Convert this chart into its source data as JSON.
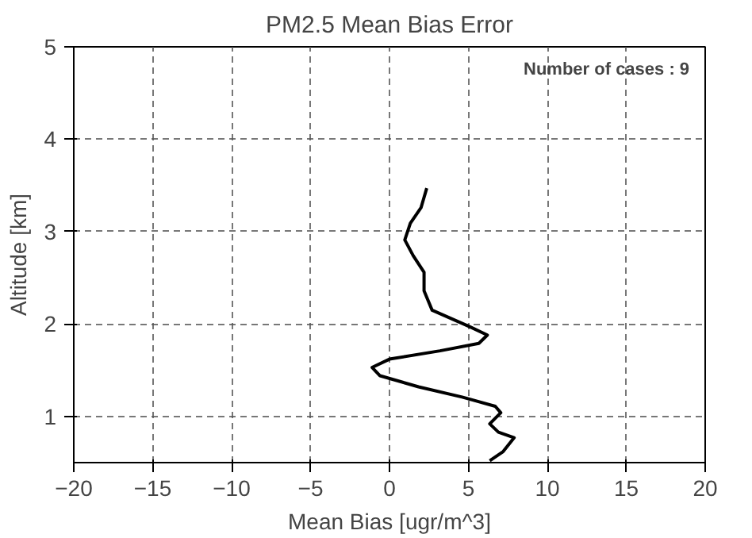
{
  "chart_data": {
    "type": "line",
    "title": "PM2.5 Mean Bias Error",
    "xlabel": "Mean Bias [ugr/m^3]",
    "ylabel": "Altitude [km]",
    "annotations": [
      "Number of cases : 9"
    ],
    "series": [
      {
        "color": "#000000",
        "x": [
          2.36,
          2.0,
          1.32,
          0.97,
          1.5,
          2.19,
          2.19,
          2.7,
          3.9,
          5.1,
          6.2,
          5.66,
          3.2,
          0,
          -1.1,
          -0.6,
          1.84,
          4.6,
          6.7,
          7.05,
          6.35,
          6.9,
          7.9,
          7.2,
          6.35
        ],
        "values": [
          3.47,
          3.26,
          3.09,
          2.91,
          2.74,
          2.56,
          2.36,
          2.15,
          2.06,
          1.97,
          1.88,
          1.79,
          1.71,
          1.62,
          1.53,
          1.44,
          1.32,
          1.21,
          1.11,
          1.04,
          0.92,
          0.83,
          0.77,
          0.62,
          0.52
        ]
      }
    ],
    "xlim": [
      -20,
      20
    ],
    "xticks": [
      -20,
      -15,
      -10,
      -5,
      0,
      5,
      10,
      15,
      20
    ],
    "ylim": [
      0.5,
      5
    ],
    "yticks": [
      1,
      2,
      3,
      4,
      5
    ],
    "grid": true,
    "line_style": "solid",
    "marker": "none"
  }
}
